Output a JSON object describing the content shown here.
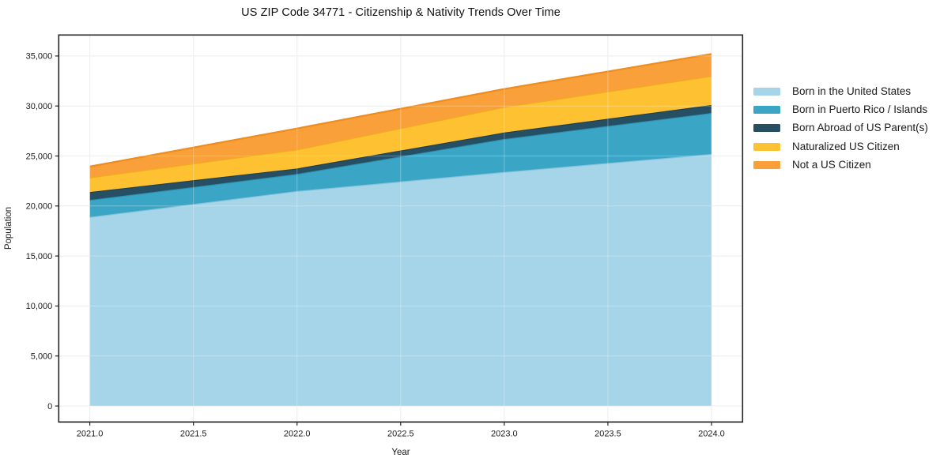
{
  "title": "US ZIP Code 34771 - Citizenship & Nativity Trends Over Time",
  "chart_data": {
    "type": "area",
    "stacked": true,
    "title": "US ZIP Code 34771 - Citizenship & Nativity Trends Over Time",
    "xlabel": "Year",
    "ylabel": "Population",
    "x": [
      2021.0,
      2022.0,
      2023.0,
      2024.0
    ],
    "series": [
      {
        "name": "Born in the United States",
        "color": "#a6d4e8",
        "edge_color": "#86c2db",
        "values": [
          18900,
          21500,
          23400,
          25200
        ]
      },
      {
        "name": "Born in Puerto Rico / Islands",
        "color": "#3ba5c5",
        "edge_color": "#2a92b4",
        "values": [
          1700,
          1700,
          3300,
          4100
        ]
      },
      {
        "name": "Born Abroad of US Parent(s)",
        "color": "#264f63",
        "edge_color": "#1c3e50",
        "values": [
          800,
          550,
          650,
          800
        ]
      },
      {
        "name": "Naturalized US Citizen",
        "color": "#fdc132",
        "edge_color": "#f2ac1c",
        "values": [
          1450,
          1900,
          2550,
          2900
        ]
      },
      {
        "name": "Not a US Citizen",
        "color": "#f9a03a",
        "edge_color": "#ee8c1e",
        "values": [
          1100,
          2100,
          1800,
          2200
        ]
      }
    ],
    "stacked_totals": [
      23950,
      27750,
      31700,
      35200
    ],
    "xticks": {
      "values": [
        2021.0,
        2021.5,
        2022.0,
        2022.5,
        2023.0,
        2023.5,
        2024.0
      ],
      "labels": [
        "2021.0",
        "2021.5",
        "2022.0",
        "2022.5",
        "2023.0",
        "2023.5",
        "2024.0"
      ]
    },
    "yticks": {
      "values": [
        0,
        5000,
        10000,
        15000,
        20000,
        25000,
        30000,
        35000
      ],
      "labels": [
        "0",
        "5,000",
        "10,000",
        "15,000",
        "20,000",
        "25,000",
        "30,000",
        "35,000"
      ]
    },
    "xlim": [
      2020.85,
      2024.15
    ],
    "ylim": [
      -1600,
      37100
    ],
    "grid": true,
    "legend_position": "right-outside",
    "axis_color": "#262626",
    "grid_color": "#e7e7e7"
  }
}
